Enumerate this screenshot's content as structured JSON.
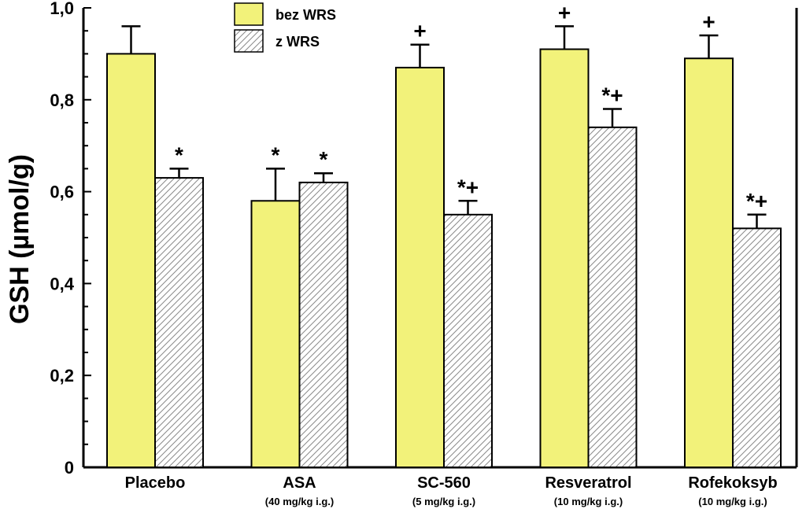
{
  "chart_data": {
    "type": "bar",
    "title": "",
    "xlabel": "",
    "ylabel": "GSH (µmol/g)",
    "ylim": [
      0,
      1.0
    ],
    "yticks": [
      "0",
      "0,2",
      "0,4",
      "0,6",
      "0,8",
      "1,0"
    ],
    "grid": false,
    "legend_position": "top-center",
    "categories": [
      "Placebo",
      "ASA",
      "SC-560",
      "Resveratrol",
      "Rofekoksyb"
    ],
    "category_sublabels": [
      "",
      "(40 mg/kg i.g.)",
      "(5 mg/kg i.g.)",
      "(10 mg/kg i.g.)",
      "(10 mg/kg i.g.)"
    ],
    "series": [
      {
        "name": "bez WRS",
        "values": [
          0.9,
          0.58,
          0.87,
          0.91,
          0.89
        ],
        "errors": [
          0.06,
          0.07,
          0.05,
          0.05,
          0.05
        ],
        "annotations": [
          "",
          "*",
          "+",
          "+",
          "+"
        ],
        "color": "#f2f27a",
        "pattern": "solid"
      },
      {
        "name": "z WRS",
        "values": [
          0.63,
          0.62,
          0.55,
          0.74,
          0.52
        ],
        "errors": [
          0.02,
          0.02,
          0.03,
          0.04,
          0.03
        ],
        "annotations": [
          "*",
          "*",
          "*+",
          "*+",
          "*+"
        ],
        "color": "#ffffff",
        "pattern": "hatched"
      }
    ]
  }
}
